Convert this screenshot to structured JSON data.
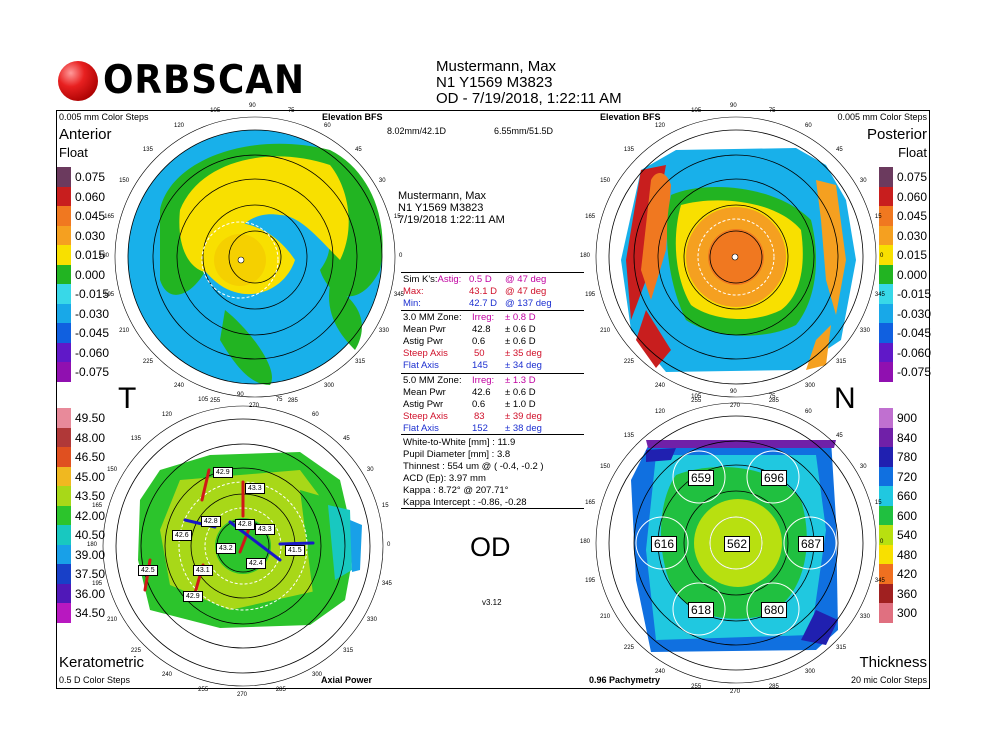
{
  "header": {
    "logo_text": "ORBSCAN",
    "patient_name": "Mustermann, Max",
    "patient_id": "N1 Y1569 M3823",
    "exam": "OD - 7/19/2018, 1:22:11 AM"
  },
  "panels": {
    "top_left_step": "0.005 mm Color Steps",
    "top_left_type": "Elevation BFS",
    "top_left_title": "Anterior",
    "top_left_sub": "Float",
    "top_center_left": "8.02mm/42.1D",
    "top_center_right": "6.55mm/51.5D",
    "top_right_type": "Elevation BFS",
    "top_right_step": "0.005 mm Color Steps",
    "top_right_title": "Posterior",
    "top_right_sub": "Float",
    "side_t": "T",
    "side_n": "N",
    "bottom_left_title": "Keratometric",
    "bottom_left_step": "0.5 D Color Steps",
    "bottom_left_type": "Axial Power",
    "bottom_right_type": "0.96 Pachymetry",
    "bottom_right_title": "Thickness",
    "bottom_right_step": "20 mic Color Steps",
    "center_label": "OD",
    "version": "v3.12"
  },
  "center_info": {
    "name": "Mustermann, Max",
    "id": "N1 Y1569 M3823",
    "date": "7/19/2018 1:22:11 AM"
  },
  "simk": {
    "label": "Sim K's:",
    "astig_label": "Astig:",
    "astig_val": "0.5 D",
    "astig_axis": "@ 47 deg",
    "max_label": "Max:",
    "max_val": "43.1 D",
    "max_axis": "@ 47 deg",
    "min_label": "Min:",
    "min_val": "42.7 D",
    "min_axis": "@ 137 deg"
  },
  "zone3": {
    "label": "3.0 MM Zone:",
    "irreg_label": "Irreg:",
    "irreg_val": "± 0.8 D",
    "mean_label": "Mean Pwr",
    "mean_val": "42.8",
    "mean_pm": "± 0.6 D",
    "astig_label": "Astig Pwr",
    "astig_val": "0.6",
    "astig_pm": "± 0.6 D",
    "steep_label": "Steep Axis",
    "steep_val": "50",
    "steep_pm": "± 35 deg",
    "flat_label": "Flat Axis",
    "flat_val": "145",
    "flat_pm": "± 34 deg"
  },
  "zone5": {
    "label": "5.0 MM Zone:",
    "irreg_label": "Irreg:",
    "irreg_val": "± 1.3 D",
    "mean_label": "Mean Pwr",
    "mean_val": "42.6",
    "mean_pm": "± 0.6 D",
    "astig_label": "Astig Pwr",
    "astig_val": "0.6",
    "astig_pm": "± 1.0 D",
    "steep_label": "Steep Axis",
    "steep_val": "83",
    "steep_pm": "± 39 deg",
    "flat_label": "Flat Axis",
    "flat_val": "152",
    "flat_pm": "± 38 deg"
  },
  "misc": {
    "wtw": "White-to-White [mm] : 11.9",
    "pupil": "Pupil Diameter [mm] :  3.8",
    "thinnest": "Thinnest : 554 um @ ( -0.4, -0.2 )",
    "acd": "ACD (Ep): 3.97 mm",
    "kappa": "Kappa : 8.72° @ 207.71°",
    "kappa_int": "Kappa Intercept : -0.86, -0.28"
  },
  "elevation_scale": [
    {
      "label": "0.075",
      "color": "#6b3a5e"
    },
    {
      "label": "0.060",
      "color": "#c81e1e"
    },
    {
      "label": "0.045",
      "color": "#f07820"
    },
    {
      "label": "0.030",
      "color": "#f5a020"
    },
    {
      "label": "0.015",
      "color": "#f8e000"
    },
    {
      "label": "0.000",
      "color": "#22b422"
    },
    {
      "label": "-0.015",
      "color": "#38d8e8"
    },
    {
      "label": "-0.030",
      "color": "#18a8e8"
    },
    {
      "label": "-0.045",
      "color": "#1060e0"
    },
    {
      "label": "-0.060",
      "color": "#6018c8"
    },
    {
      "label": "-0.075",
      "color": "#9010b0"
    }
  ],
  "kerato_scale": [
    {
      "label": "49.50",
      "color": "#e88a9a"
    },
    {
      "label": "48.00",
      "color": "#b03838"
    },
    {
      "label": "46.50",
      "color": "#e05020"
    },
    {
      "label": "45.00",
      "color": "#f0b820"
    },
    {
      "label": "43.50",
      "color": "#a8d818"
    },
    {
      "label": "42.00",
      "color": "#2cc42c"
    },
    {
      "label": "40.50",
      "color": "#18c8c0"
    },
    {
      "label": "39.00",
      "color": "#18a0e8"
    },
    {
      "label": "37.50",
      "color": "#1840c8"
    },
    {
      "label": "36.00",
      "color": "#5018b8"
    },
    {
      "label": "34.50",
      "color": "#b818c0"
    }
  ],
  "thickness_scale": [
    {
      "label": "900",
      "color": "#c070d0"
    },
    {
      "label": "840",
      "color": "#7020a8"
    },
    {
      "label": "780",
      "color": "#2020b0"
    },
    {
      "label": "720",
      "color": "#1070e0"
    },
    {
      "label": "660",
      "color": "#20c8e0"
    },
    {
      "label": "600",
      "color": "#20c040"
    },
    {
      "label": "540",
      "color": "#b8e010"
    },
    {
      "label": "480",
      "color": "#f8e000"
    },
    {
      "label": "420",
      "color": "#f07020"
    },
    {
      "label": "360",
      "color": "#a02020"
    },
    {
      "label": "300",
      "color": "#e07080"
    }
  ],
  "kerato_values": [
    {
      "label": "42.9"
    },
    {
      "label": "43.3"
    },
    {
      "label": "42.8"
    },
    {
      "label": "42.6"
    },
    {
      "label": "42.8"
    },
    {
      "label": "43.3"
    },
    {
      "label": "43.2"
    },
    {
      "label": "42.4"
    },
    {
      "label": "41.5"
    },
    {
      "label": "43.1"
    },
    {
      "label": "42.5"
    },
    {
      "label": "42.9"
    }
  ],
  "pachy_values": [
    {
      "label": "659"
    },
    {
      "label": "696"
    },
    {
      "label": "616"
    },
    {
      "label": "562"
    },
    {
      "label": "687"
    },
    {
      "label": "618"
    },
    {
      "label": "680"
    }
  ],
  "angle_labels": [
    "90",
    "105",
    "120",
    "135",
    "150",
    "165",
    "180",
    "195",
    "210",
    "225",
    "240",
    "255",
    "270",
    "285",
    "300",
    "315",
    "330",
    "345",
    "0",
    "15",
    "30",
    "45",
    "60",
    "75"
  ]
}
